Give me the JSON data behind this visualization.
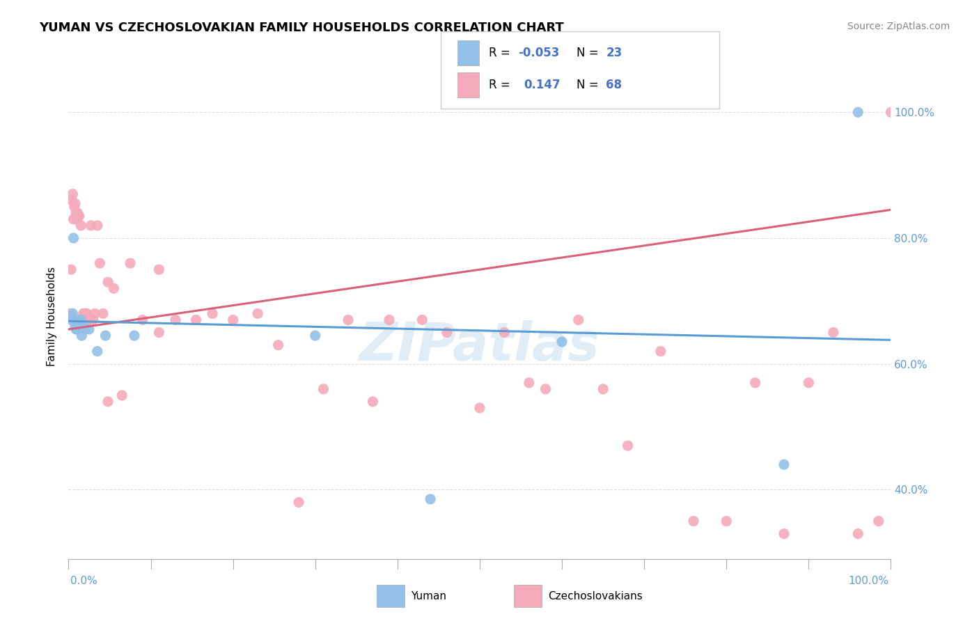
{
  "title": "YUMAN VS CZECHOSLOVAKIAN FAMILY HOUSEHOLDS CORRELATION CHART",
  "source": "Source: ZipAtlas.com",
  "ylabel": "Family Households",
  "xlim": [
    0.0,
    1.0
  ],
  "ylim": [
    0.29,
    1.06
  ],
  "ytick_labels": [
    "40.0%",
    "60.0%",
    "80.0%",
    "100.0%"
  ],
  "ytick_values": [
    0.4,
    0.6,
    0.8,
    1.0
  ],
  "grid_color": "#dddddd",
  "background_color": "#ffffff",
  "watermark": "ZIPatlas",
  "legend_r_blue": "-0.053",
  "legend_n_blue": "23",
  "legend_r_pink": "0.147",
  "legend_n_pink": "68",
  "blue_color": "#92C0E8",
  "pink_color": "#F5AABB",
  "trend_blue_color": "#5B9BD5",
  "trend_pink_color": "#D9607A",
  "yuman_x": [
    0.003,
    0.005,
    0.006,
    0.007,
    0.008,
    0.009,
    0.01,
    0.011,
    0.012,
    0.013,
    0.015,
    0.016,
    0.018,
    0.02,
    0.025,
    0.035,
    0.045,
    0.08,
    0.3,
    0.44,
    0.6,
    0.87,
    0.96
  ],
  "yuman_y": [
    0.67,
    0.68,
    0.8,
    0.67,
    0.66,
    0.655,
    0.66,
    0.655,
    0.665,
    0.665,
    0.67,
    0.645,
    0.66,
    0.655,
    0.655,
    0.62,
    0.645,
    0.645,
    0.645,
    0.385,
    0.635,
    0.44,
    1.0
  ],
  "czech_x": [
    0.002,
    0.003,
    0.004,
    0.005,
    0.006,
    0.007,
    0.008,
    0.009,
    0.01,
    0.011,
    0.012,
    0.013,
    0.014,
    0.015,
    0.016,
    0.017,
    0.018,
    0.019,
    0.02,
    0.021,
    0.022,
    0.024,
    0.025,
    0.027,
    0.03,
    0.032,
    0.035,
    0.038,
    0.042,
    0.048,
    0.055,
    0.065,
    0.075,
    0.09,
    0.11,
    0.13,
    0.155,
    0.175,
    0.2,
    0.23,
    0.255,
    0.28,
    0.31,
    0.34,
    0.37,
    0.39,
    0.43,
    0.46,
    0.5,
    0.53,
    0.56,
    0.58,
    0.62,
    0.65,
    0.68,
    0.72,
    0.76,
    0.8,
    0.835,
    0.87,
    0.9,
    0.93,
    0.96,
    0.985,
    0.022,
    0.048,
    0.11,
    1.0
  ],
  "czech_y": [
    0.68,
    0.75,
    0.86,
    0.87,
    0.83,
    0.85,
    0.855,
    0.84,
    0.83,
    0.84,
    0.835,
    0.835,
    0.67,
    0.82,
    0.67,
    0.67,
    0.68,
    0.68,
    0.67,
    0.68,
    0.67,
    0.67,
    0.67,
    0.82,
    0.67,
    0.68,
    0.82,
    0.76,
    0.68,
    0.73,
    0.72,
    0.55,
    0.76,
    0.67,
    0.75,
    0.67,
    0.67,
    0.68,
    0.67,
    0.68,
    0.63,
    0.38,
    0.56,
    0.67,
    0.54,
    0.67,
    0.67,
    0.65,
    0.53,
    0.65,
    0.57,
    0.56,
    0.67,
    0.56,
    0.47,
    0.62,
    0.35,
    0.35,
    0.57,
    0.33,
    0.57,
    0.65,
    0.33,
    0.35,
    0.68,
    0.54,
    0.65,
    1.0
  ]
}
